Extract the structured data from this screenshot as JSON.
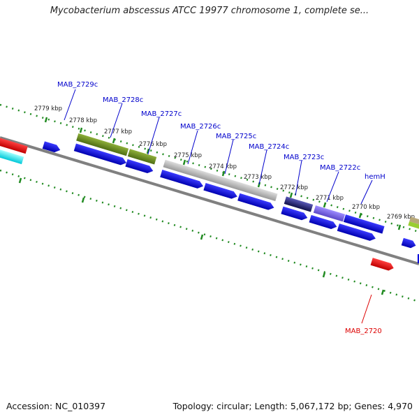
{
  "title": "Mycobacterium abscessus ATCC 19977 chromosome 1, complete se...",
  "footer": {
    "accession": "Accession: NC_010397",
    "summary": "Topology: circular; Length: 5,067,172 bp; Genes: 4,970"
  },
  "ticks": [
    "2779 kbp",
    "2778 kbp",
    "2777 kbp",
    "2776 kbp",
    "2775 kbp",
    "2774 kbp",
    "2773 kbp",
    "2772 kbp",
    "2771 kbp",
    "2770 kbp",
    "2769 kbp"
  ],
  "gene_labels": [
    {
      "name": "MAB_2729c",
      "color": "#0000cc"
    },
    {
      "name": "MAB_2728c",
      "color": "#0000cc"
    },
    {
      "name": "MAB_2727c",
      "color": "#0000cc"
    },
    {
      "name": "MAB_2726c",
      "color": "#0000cc"
    },
    {
      "name": "MAB_2725c",
      "color": "#0000cc"
    },
    {
      "name": "MAB_2724c",
      "color": "#0000cc"
    },
    {
      "name": "MAB_2723c",
      "color": "#0000cc"
    },
    {
      "name": "MAB_2722c",
      "color": "#0000cc"
    },
    {
      "name": "hemH",
      "color": "#0000cc"
    },
    {
      "name": "MAB_2720",
      "color": "#dd0000"
    }
  ],
  "colors": {
    "cds": "#0000dd",
    "gene_olive": "#6b8e23",
    "gene_gray": "#bbbbbb",
    "gene_navy": "#2a2a80",
    "gene_purple": "#7b68ee",
    "gene_red": "#ee0000",
    "gene_cyan": "#00e5ee",
    "backbone": "#777777",
    "ticks": "#228b22"
  }
}
